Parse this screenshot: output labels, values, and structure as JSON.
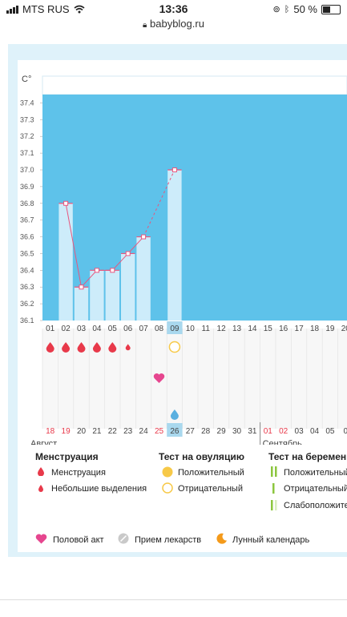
{
  "status_bar": {
    "carrier": "MTS RUS",
    "time": "13:36",
    "battery": "50 %",
    "battery_level": 0.5
  },
  "browser": {
    "url": "babyblog.ru"
  },
  "chart_data": {
    "type": "line",
    "ylabel": "C°",
    "y_ticks": [
      "37.4",
      "37.3",
      "37.2",
      "37.1",
      "37.0",
      "36.9",
      "36.8",
      "36.7",
      "36.6",
      "36.5",
      "36.4",
      "36.3",
      "36.2",
      "36.1"
    ],
    "ylim": [
      36.1,
      37.45
    ],
    "day_labels": [
      "01",
      "02",
      "03",
      "04",
      "05",
      "06",
      "07",
      "08",
      "09",
      "10",
      "11",
      "12",
      "13",
      "14",
      "15",
      "16",
      "17",
      "18",
      "19",
      "20"
    ],
    "highlight_day": "09",
    "points": [
      {
        "day": "02",
        "temp": 36.8
      },
      {
        "day": "03",
        "temp": 36.3
      },
      {
        "day": "04",
        "temp": 36.4
      },
      {
        "day": "05",
        "temp": 36.4
      },
      {
        "day": "06",
        "temp": 36.5
      },
      {
        "day": "07",
        "temp": 36.6
      },
      {
        "day": "09",
        "temp": 37.0
      }
    ],
    "dashed_from_day": "07",
    "menstruation_days": [
      {
        "day": "01",
        "kind": "full"
      },
      {
        "day": "02",
        "kind": "full"
      },
      {
        "day": "03",
        "kind": "full"
      },
      {
        "day": "04",
        "kind": "full"
      },
      {
        "day": "05",
        "kind": "full"
      },
      {
        "day": "06",
        "kind": "small"
      }
    ],
    "ovulation_test": {
      "day": "09",
      "result": "negative"
    },
    "intercourse_day": "08",
    "dates": [
      {
        "label": "18",
        "red": true
      },
      {
        "label": "19",
        "red": true
      },
      {
        "label": "20",
        "red": false
      },
      {
        "label": "21",
        "red": false
      },
      {
        "label": "22",
        "red": false
      },
      {
        "label": "23",
        "red": false
      },
      {
        "label": "24",
        "red": false
      },
      {
        "label": "25",
        "red": true
      },
      {
        "label": "26",
        "red": false
      },
      {
        "label": "27",
        "red": false
      },
      {
        "label": "28",
        "red": false
      },
      {
        "label": "29",
        "red": false
      },
      {
        "label": "30",
        "red": false
      },
      {
        "label": "31",
        "red": false
      },
      {
        "label": "01",
        "red": true
      },
      {
        "label": "02",
        "red": true
      },
      {
        "label": "03",
        "red": false
      },
      {
        "label": "04",
        "red": false
      },
      {
        "label": "05",
        "red": false
      },
      {
        "label": "0",
        "red": false
      }
    ],
    "months": [
      "Август",
      "Сентябрь"
    ]
  },
  "legend": {
    "menstruation": {
      "title": "Менструация",
      "item1": "Менструация",
      "item2": "Небольшие выделения"
    },
    "ovulation": {
      "title": "Тест на овуляцию",
      "item1": "Положительный",
      "item2": "Отрицательный"
    },
    "pregnancy": {
      "title": "Тест на беременно",
      "item1": "Положительный",
      "item2": "Отрицательный",
      "item3": "Слабоположите"
    },
    "bottom": {
      "item1": "Половой акт",
      "item2": "Прием лекарств",
      "item3": "Лунный календарь"
    }
  },
  "colors": {
    "chart_bg": "#5ec2ea",
    "bar_fill": "#cdecfa",
    "line": "#e8567e",
    "drop": "#e8394a",
    "highlight": "#a9d8ee",
    "ovulation": "#f7c948",
    "pregnancy": "#8cc63f",
    "moon": "#f49a1a"
  }
}
